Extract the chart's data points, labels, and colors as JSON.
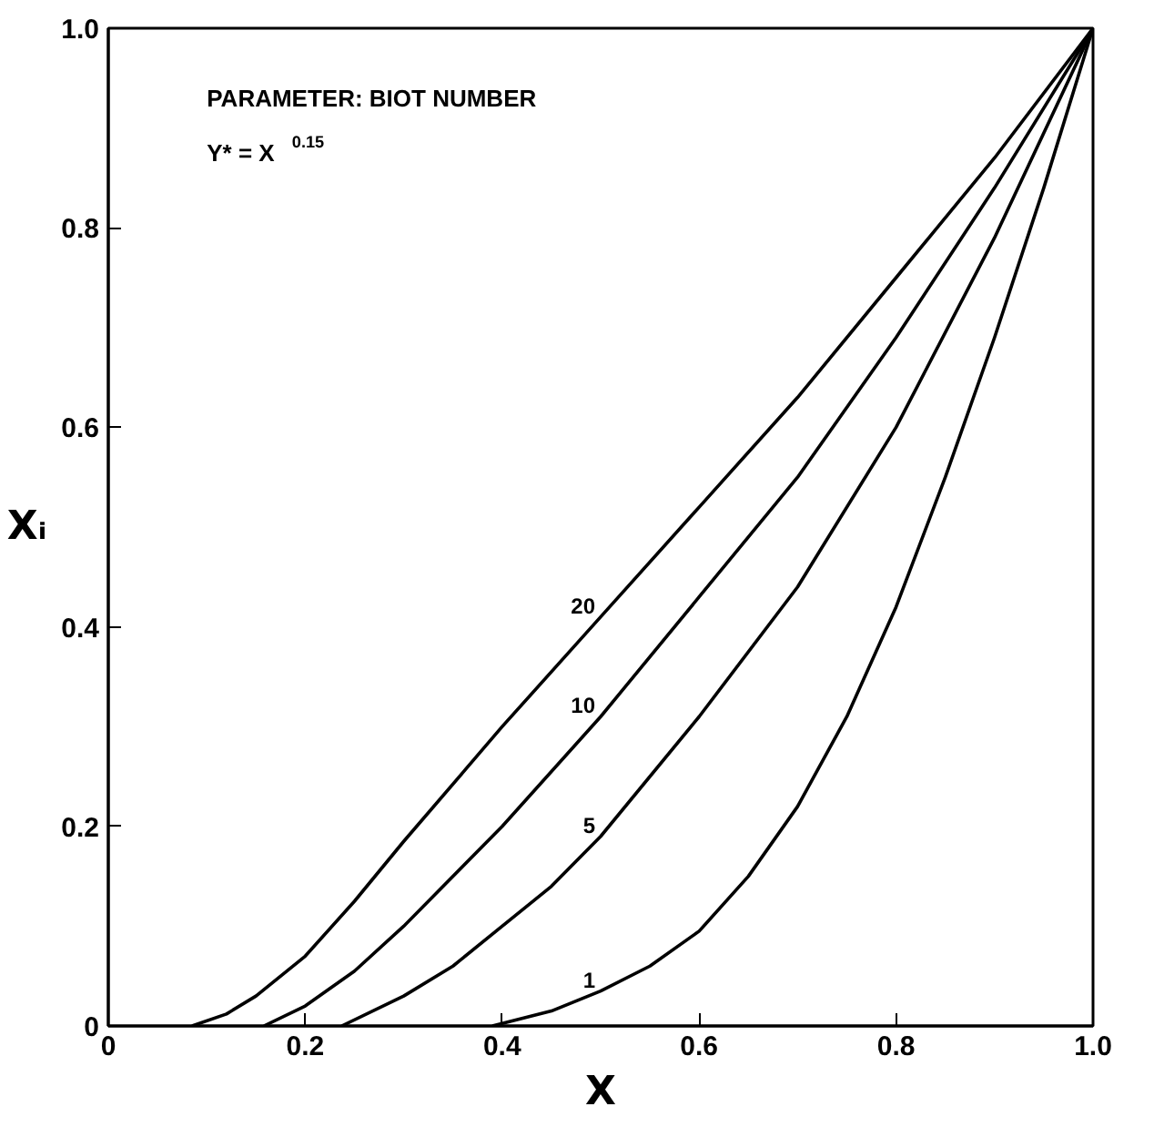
{
  "chart_data": {
    "type": "line",
    "xlabel": "X",
    "ylabel": "Xᵢ",
    "xlim": [
      0,
      1
    ],
    "ylim": [
      0,
      1
    ],
    "xticks": [
      0,
      0.2,
      0.4,
      0.6,
      0.8,
      {
        "value": 1,
        "label": "1.0"
      }
    ],
    "yticks": [
      0,
      0.2,
      0.4,
      0.6,
      0.8,
      {
        "value": 1,
        "label": "1.0"
      }
    ],
    "grid": false,
    "marker": "none",
    "line_style": "solid",
    "annotations": [
      "PARAMETER: BIOT NUMBER",
      "Y* = X$^{0.15}$"
    ],
    "series": [
      {
        "name": "20",
        "color": "#000000",
        "x": [
          0.085,
          0.12,
          0.15,
          0.2,
          0.25,
          0.3,
          0.4,
          0.5,
          0.6,
          0.7,
          0.8,
          0.9,
          1
        ],
        "values": [
          0,
          0.012,
          0.03,
          0.07,
          0.125,
          0.185,
          0.3,
          0.41,
          0.52,
          0.63,
          0.75,
          0.87,
          1
        ]
      },
      {
        "name": "10",
        "color": "#000000",
        "x": [
          0.158,
          0.2,
          0.25,
          0.3,
          0.4,
          0.5,
          0.6,
          0.7,
          0.8,
          0.9,
          1
        ],
        "values": [
          0,
          0.02,
          0.055,
          0.1,
          0.2,
          0.31,
          0.43,
          0.55,
          0.69,
          0.84,
          1
        ]
      },
      {
        "name": "5",
        "color": "#000000",
        "x": [
          0.237,
          0.3,
          0.35,
          0.4,
          0.45,
          0.5,
          0.6,
          0.7,
          0.8,
          0.9,
          1
        ],
        "values": [
          0,
          0.03,
          0.06,
          0.1,
          0.14,
          0.19,
          0.31,
          0.44,
          0.6,
          0.79,
          1
        ]
      },
      {
        "name": "1",
        "color": "#000000",
        "x": [
          0.39,
          0.45,
          0.5,
          0.55,
          0.6,
          0.65,
          0.7,
          0.75,
          0.8,
          0.85,
          0.9,
          0.95,
          1
        ],
        "values": [
          0,
          0.015,
          0.035,
          0.06,
          0.095,
          0.15,
          0.22,
          0.31,
          0.42,
          0.55,
          0.69,
          0.84,
          1
        ]
      }
    ]
  }
}
